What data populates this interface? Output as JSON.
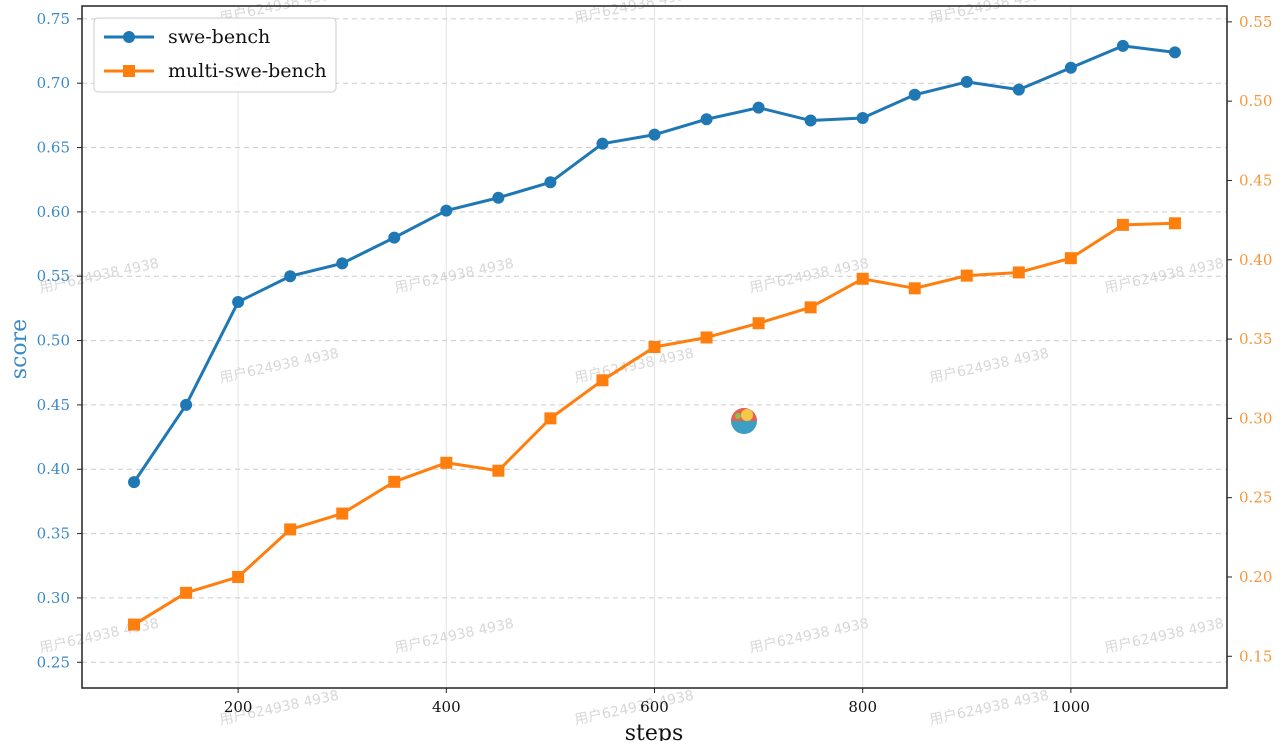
{
  "chart_data": {
    "type": "line",
    "xlabel": "steps",
    "ylabel": "score",
    "xlim": [
      50,
      1150
    ],
    "xticks": [
      200,
      400,
      600,
      800,
      1000
    ],
    "ylim_left": [
      0.23,
      0.76
    ],
    "yticks_left": [
      0.25,
      0.3,
      0.35,
      0.4,
      0.45,
      0.5,
      0.55,
      0.6,
      0.65,
      0.7,
      0.75
    ],
    "ylim_right": [
      0.13,
      0.56
    ],
    "yticks_right": [
      0.15,
      0.2,
      0.25,
      0.3,
      0.35,
      0.4,
      0.45,
      0.5,
      0.55
    ],
    "grid": true,
    "legend_position": "top-left",
    "x": [
      100,
      150,
      200,
      250,
      300,
      350,
      400,
      450,
      500,
      550,
      600,
      650,
      700,
      750,
      800,
      850,
      900,
      950,
      1000,
      1050,
      1100
    ],
    "series": [
      {
        "name": "swe-bench",
        "axis": "left",
        "marker": "circle",
        "color": "#1f77b4",
        "values": [
          0.39,
          0.45,
          0.53,
          0.55,
          0.56,
          0.58,
          0.601,
          0.611,
          0.623,
          0.653,
          0.66,
          0.672,
          0.681,
          0.671,
          0.673,
          0.691,
          0.701,
          0.695,
          0.712,
          0.729,
          0.724
        ]
      },
      {
        "name": "multi-swe-bench",
        "axis": "right",
        "marker": "square",
        "color": "#ff7f0e",
        "values": [
          0.17,
          0.19,
          0.2,
          0.23,
          0.24,
          0.26,
          0.272,
          0.267,
          0.3,
          0.324,
          0.345,
          0.351,
          0.36,
          0.37,
          0.388,
          0.382,
          0.39,
          0.392,
          0.401,
          0.422,
          0.423
        ]
      }
    ]
  },
  "watermark_text": "用户624938 4938",
  "colors": {
    "left_axis": "#3a8ac6",
    "right_axis": "#f5973a",
    "grid": "#cccccc",
    "frame": "#222222"
  }
}
